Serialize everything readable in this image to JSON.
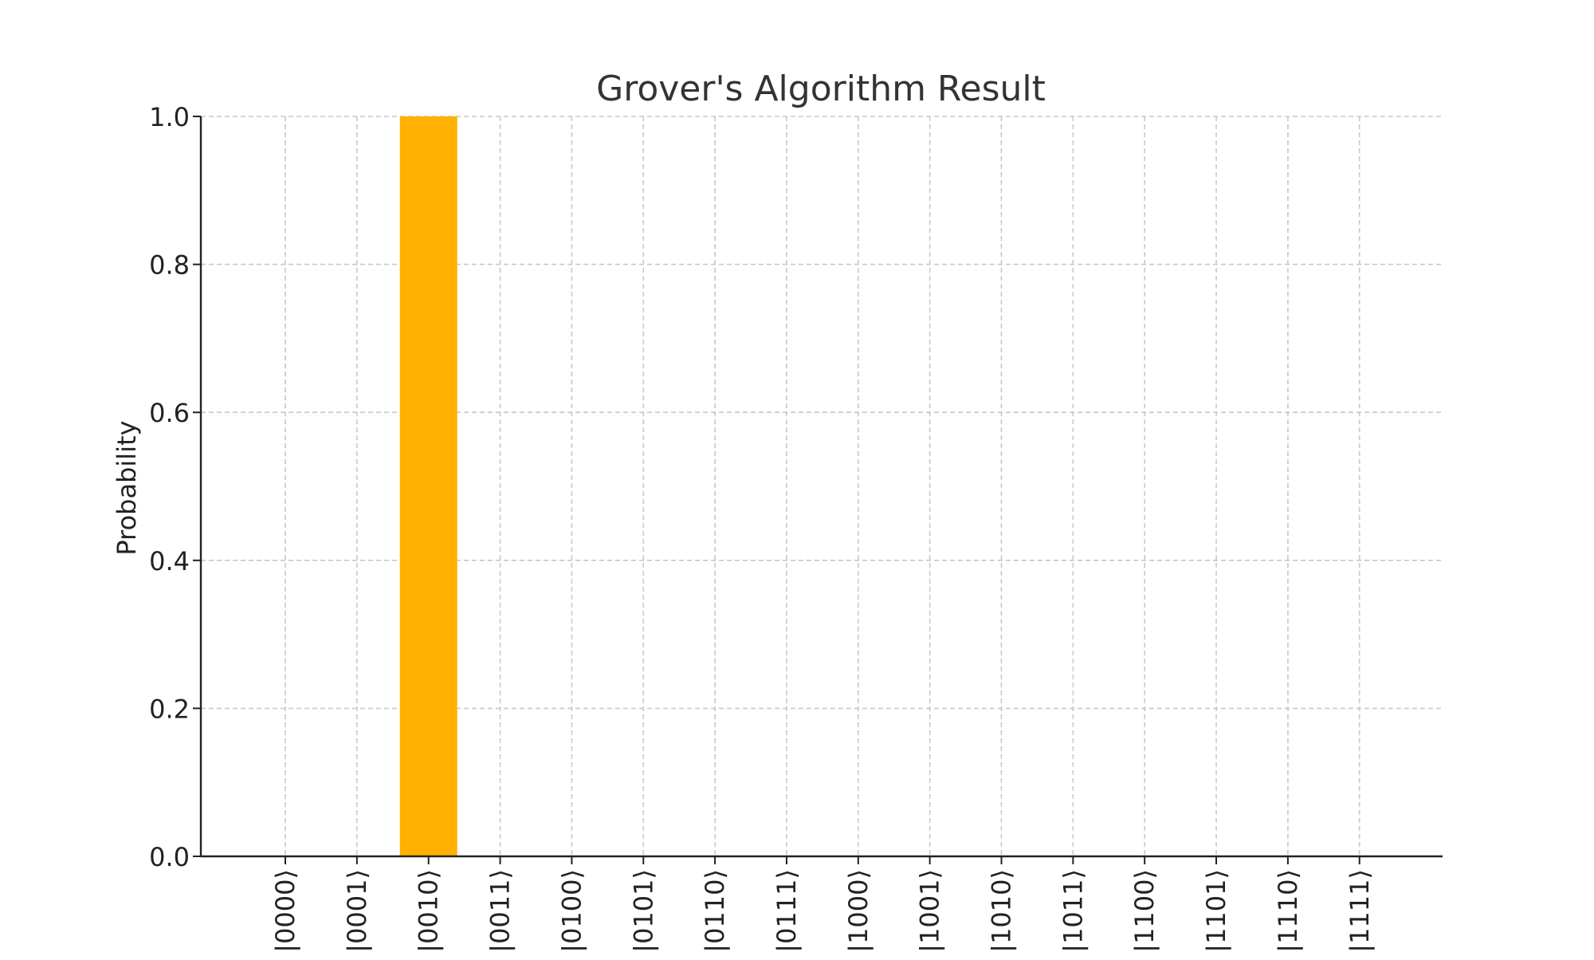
{
  "chart_data": {
    "type": "bar",
    "title": "Grover's Algorithm Result",
    "xlabel": "",
    "ylabel": "Probability",
    "categories": [
      "|0000⟩",
      "|0001⟩",
      "|0010⟩",
      "|0011⟩",
      "|0100⟩",
      "|0101⟩",
      "|0110⟩",
      "|0111⟩",
      "|1000⟩",
      "|1001⟩",
      "|1010⟩",
      "|1011⟩",
      "|1100⟩",
      "|1101⟩",
      "|1110⟩",
      "|1111⟩"
    ],
    "values": [
      0,
      0,
      1.0,
      0,
      0,
      0,
      0,
      0,
      0,
      0,
      0,
      0,
      0,
      0,
      0,
      0
    ],
    "ylim": [
      0,
      1.0
    ],
    "yticks": [
      "0.0",
      "0.2",
      "0.4",
      "0.6",
      "0.8",
      "1.0"
    ],
    "grid": true,
    "bar_color": "#FFB000",
    "grid_color": "#c8c8c8",
    "axis_color": "#222222",
    "text_color": "#222222",
    "title_color": "#333333"
  }
}
